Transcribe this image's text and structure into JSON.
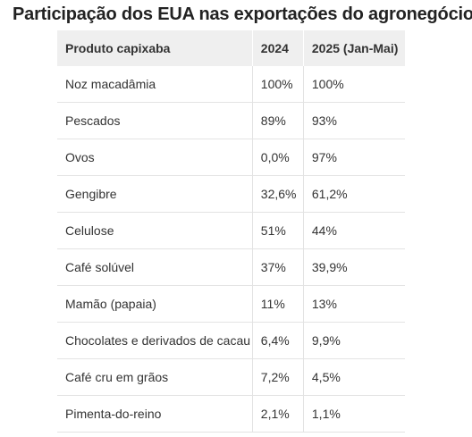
{
  "title": "Participação dos EUA nas exportações do agronegócio",
  "table": {
    "headers": [
      "Produto capixaba",
      "2024",
      "2025 (Jan-Mai)"
    ],
    "rows": [
      [
        "Noz macadâmia",
        "100%",
        "100%"
      ],
      [
        "Pescados",
        "89%",
        "93%"
      ],
      [
        "Ovos",
        "0,0%",
        "97%"
      ],
      [
        "Gengibre",
        "32,6%",
        "61,2%"
      ],
      [
        "Celulose",
        "51%",
        "44%"
      ],
      [
        "Café solúvel",
        "37%",
        "39,9%"
      ],
      [
        "Mamão (papaia)",
        "11%",
        "13%"
      ],
      [
        "Chocolates e derivados de cacau",
        "6,4%",
        "9,9%"
      ],
      [
        "Café cru em grãos",
        "7,2%",
        "4,5%"
      ],
      [
        "Pimenta-do-reino",
        "2,1%",
        "1,1%"
      ]
    ]
  }
}
